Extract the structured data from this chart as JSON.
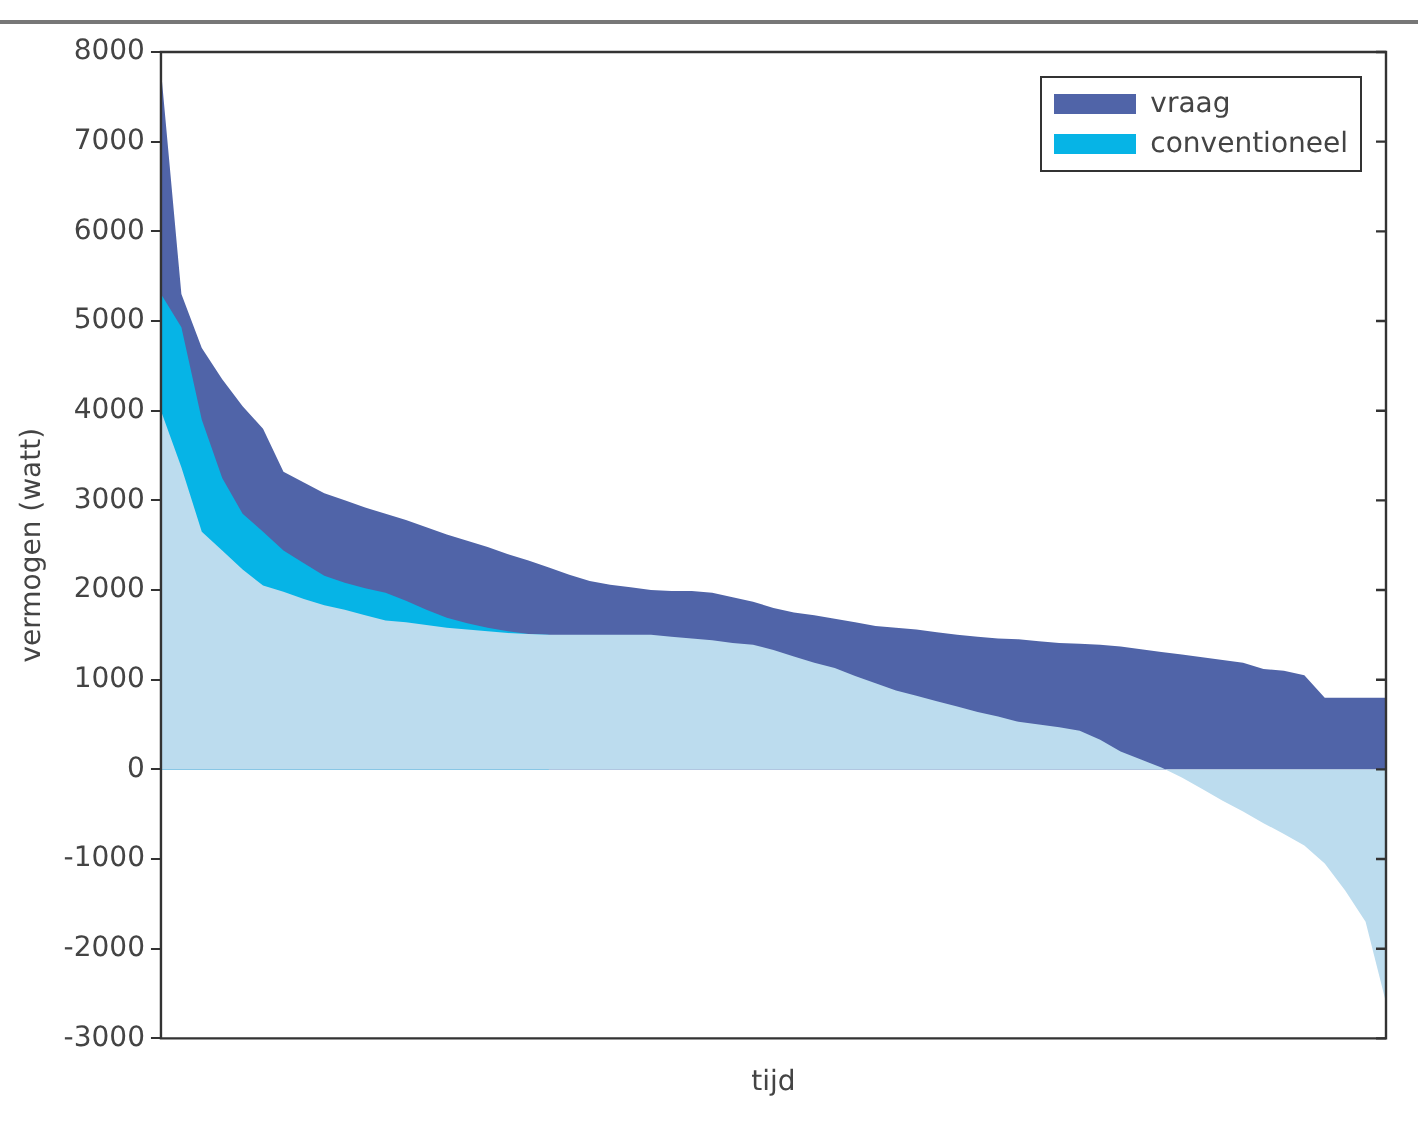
{
  "chart_data": {
    "type": "area",
    "xlabel": "tijd",
    "ylabel": "vermogen (watt)",
    "categories": [
      null,
      null,
      null,
      null,
      null,
      null,
      null,
      null,
      null,
      null,
      null,
      null,
      null,
      null,
      null,
      null,
      null,
      null,
      null,
      null,
      null,
      null,
      null,
      null,
      null,
      null,
      null,
      null,
      null,
      null,
      null,
      null,
      null,
      null,
      null,
      null,
      null,
      null,
      null,
      null,
      null,
      null,
      null,
      null,
      null,
      null,
      null,
      null,
      null,
      null,
      null,
      null,
      null,
      null,
      null,
      null,
      null,
      null,
      null,
      null,
      null
    ],
    "series": [
      {
        "name": "vraag",
        "color": "#5064a8",
        "values": [
          7800,
          5300,
          4700,
          4350,
          4050,
          3800,
          3320,
          3200,
          3080,
          3000,
          2920,
          2850,
          2780,
          2700,
          2620,
          2550,
          2480,
          2400,
          2330,
          2250,
          2170,
          2100,
          2060,
          2030,
          2000,
          1990,
          1990,
          1970,
          1920,
          1870,
          1800,
          1750,
          1720,
          1680,
          1640,
          1600,
          1580,
          1560,
          1530,
          1500,
          1480,
          1460,
          1450,
          1430,
          1410,
          1400,
          1390,
          1370,
          1340,
          1310,
          1280,
          1250,
          1220,
          1190,
          1120,
          1100,
          1050,
          800,
          800,
          800,
          800
        ]
      },
      {
        "name": "conventioneel",
        "color": "#06b4e6",
        "values": [
          5300,
          4930,
          3900,
          3250,
          2850,
          2650,
          2440,
          2300,
          2160,
          2080,
          2020,
          1970,
          1880,
          1780,
          1690,
          1630,
          1580,
          1540,
          1510,
          1500,
          null,
          null,
          null,
          null,
          null,
          null,
          null,
          null,
          null,
          null,
          null,
          null,
          null,
          null,
          null,
          null,
          null,
          null,
          null,
          null,
          null,
          null,
          null,
          null,
          null,
          null,
          null,
          null,
          null,
          null,
          null,
          null,
          null,
          null,
          null,
          null,
          null,
          null,
          null,
          null,
          null
        ]
      },
      {
        "color": "#bcdcee",
        "values": [
          4000,
          3370,
          2650,
          2440,
          2230,
          2050,
          1980,
          1900,
          1830,
          1780,
          1720,
          1660,
          1640,
          1610,
          1580,
          1560,
          1540,
          1520,
          1510,
          1500,
          1500,
          1500,
          1500,
          1500,
          1500,
          1480,
          1460,
          1440,
          1410,
          1390,
          1330,
          1260,
          1190,
          1130,
          1040,
          960,
          880,
          820,
          760,
          700,
          640,
          590,
          530,
          500,
          470,
          430,
          330,
          200,
          110,
          20,
          -90,
          -220,
          -350,
          -470,
          -600,
          -720,
          -850,
          -1050,
          -1350,
          -1700,
          -2600
        ]
      }
    ],
    "ylim": [
      -3000,
      8000
    ],
    "yticks": [
      -3000,
      -2000,
      -1000,
      0,
      1000,
      2000,
      3000,
      4000,
      5000,
      6000,
      7000,
      8000
    ],
    "grid": false,
    "legend": "top right",
    "marker": "none"
  }
}
